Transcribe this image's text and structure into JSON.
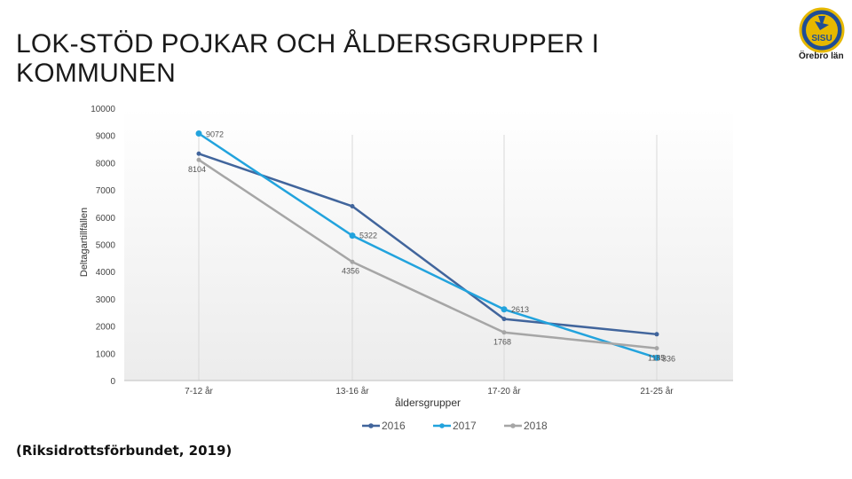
{
  "slide": {
    "title": "LOK-STÖD POJKAR OCH ÅLDERSGRUPPER I KOMMUNEN",
    "source": "(Riksidrottsförbundet, 2019)",
    "logo_text": "Örebro län",
    "logo_badge_text": "SISU"
  },
  "chart_data": {
    "type": "line",
    "title": "",
    "xlabel": "åldersgrupper",
    "ylabel": "Deltagartillfällen",
    "categories": [
      "7-12 år",
      "13-16 år",
      "17-20 år",
      "21-25 år"
    ],
    "ylim": [
      0,
      10000
    ],
    "yticks": [
      0,
      1000,
      2000,
      3000,
      4000,
      5000,
      6000,
      7000,
      8000,
      9000,
      10000
    ],
    "legend_position": "bottom",
    "grid": "vertical lines at categories",
    "series": [
      {
        "name": "2016",
        "color": "#41659c",
        "values": [
          8330,
          6400,
          2260,
          1700
        ]
      },
      {
        "name": "2017",
        "color": "#22a3dd",
        "values": [
          9072,
          5322,
          2613,
          836
        ]
      },
      {
        "name": "2018",
        "color": "#a6a6a6",
        "values": [
          8104,
          4356,
          1768,
          1185
        ]
      }
    ],
    "data_labels": [
      {
        "series": "2017",
        "index": 0,
        "text": "9072"
      },
      {
        "series": "2018",
        "index": 0,
        "text": "8104"
      },
      {
        "series": "2017",
        "index": 1,
        "text": "5322"
      },
      {
        "series": "2018",
        "index": 1,
        "text": "4356"
      },
      {
        "series": "2017",
        "index": 2,
        "text": "2613"
      },
      {
        "series": "2018",
        "index": 2,
        "text": "1768"
      },
      {
        "series": "2018",
        "index": 3,
        "text": "1185"
      },
      {
        "series": "2017",
        "index": 3,
        "text": "836"
      }
    ]
  }
}
